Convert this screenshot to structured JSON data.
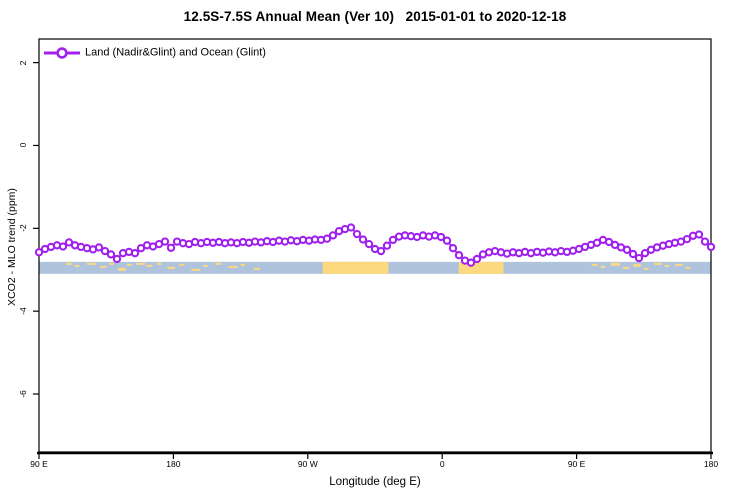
{
  "title": "12.5S-7.5S Annual Mean (Ver 10)   2015-01-01 to 2020-12-18",
  "legend": {
    "label": "Land (Nadir&Glint) and Ocean (Glint)",
    "position": "top-left-inside"
  },
  "colors": {
    "series_purple": "#A020F0",
    "ocean_blue": "#AFC3DD",
    "land_yellow": "#FCD97F",
    "axis_black": "#000000",
    "background": "#FFFFFF"
  },
  "chart_data": {
    "type": "line",
    "title": "12.5S-7.5S Annual Mean (Ver 10)   2015-01-01 to 2020-12-18",
    "xlabel": "Longitude (deg E)",
    "ylabel": "XCO2 - MLO trend (ppm)",
    "xlim": [
      90,
      540
    ],
    "ylim": [
      -7.4,
      2.57
    ],
    "grid": false,
    "x_ticks": [
      {
        "v": 90,
        "label": "90 E"
      },
      {
        "v": 180,
        "label": "180"
      },
      {
        "v": 270,
        "label": "90 W"
      },
      {
        "v": 360,
        "label": "0"
      },
      {
        "v": 450,
        "label": "90 E"
      },
      {
        "v": 540,
        "label": "180"
      }
    ],
    "y_ticks": [
      {
        "v": 2,
        "label": "2"
      },
      {
        "v": 0,
        "label": "0"
      },
      {
        "v": -2,
        "label": "-2"
      },
      {
        "v": -4,
        "label": "-4"
      },
      {
        "v": -6,
        "label": "-6"
      }
    ],
    "series": [
      {
        "name": "Land (Nadir&Glint) and Ocean (Glint)",
        "color": "#A020F0",
        "marker": "open-circle",
        "x_start": 90,
        "x_step": 4,
        "x_unit": "deg E (wraps past 180 to repeat 90E-180 section)",
        "values": [
          -2.58,
          -2.5,
          -2.45,
          -2.41,
          -2.44,
          -2.34,
          -2.41,
          -2.45,
          -2.48,
          -2.51,
          -2.46,
          -2.55,
          -2.63,
          -2.74,
          -2.6,
          -2.57,
          -2.6,
          -2.48,
          -2.41,
          -2.44,
          -2.38,
          -2.32,
          -2.47,
          -2.32,
          -2.36,
          -2.38,
          -2.33,
          -2.36,
          -2.33,
          -2.35,
          -2.33,
          -2.36,
          -2.34,
          -2.36,
          -2.33,
          -2.35,
          -2.32,
          -2.34,
          -2.31,
          -2.33,
          -2.3,
          -2.32,
          -2.29,
          -2.31,
          -2.28,
          -2.3,
          -2.27,
          -2.28,
          -2.25,
          -2.17,
          -2.07,
          -2.02,
          -1.98,
          -2.14,
          -2.27,
          -2.38,
          -2.5,
          -2.55,
          -2.42,
          -2.28,
          -2.2,
          -2.17,
          -2.19,
          -2.21,
          -2.17,
          -2.2,
          -2.17,
          -2.21,
          -2.3,
          -2.48,
          -2.65,
          -2.78,
          -2.83,
          -2.74,
          -2.63,
          -2.58,
          -2.55,
          -2.58,
          -2.61,
          -2.58,
          -2.6,
          -2.57,
          -2.6,
          -2.57,
          -2.59,
          -2.56,
          -2.58,
          -2.55,
          -2.57,
          -2.54,
          -2.5,
          -2.45,
          -2.4,
          -2.35,
          -2.28,
          -2.33,
          -2.4,
          -2.46,
          -2.52,
          -2.62,
          -2.72,
          -2.6,
          -2.52,
          -2.46,
          -2.42,
          -2.38,
          -2.35,
          -2.32,
          -2.26,
          -2.18,
          -2.15,
          -2.32,
          -2.45
        ]
      }
    ],
    "map_strip": {
      "description": "land/ocean map band for 12.5S-7.5S latitude strip",
      "value_top": -2.81,
      "value_bottom": -3.1,
      "ocean_color": "#AFC3DD",
      "land_color": "#FCD97F",
      "land_patches": [
        {
          "from": 280,
          "to": 324
        },
        {
          "from": 371,
          "to": 401
        }
      ],
      "speckles": [
        [
          108,
          4,
          1,
          2
        ],
        [
          114,
          3,
          3,
          2
        ],
        [
          122,
          6,
          1,
          2
        ],
        [
          131,
          4,
          4,
          2
        ],
        [
          137,
          3,
          1,
          2
        ],
        [
          143,
          5,
          6,
          3
        ],
        [
          149,
          3,
          2,
          2
        ],
        [
          155,
          6,
          1,
          2
        ],
        [
          162,
          4,
          3,
          2
        ],
        [
          169,
          3,
          1,
          2
        ],
        [
          176,
          5,
          5,
          2
        ],
        [
          184,
          3,
          2,
          2
        ],
        [
          192,
          6,
          7,
          2
        ],
        [
          200,
          3,
          3,
          2
        ],
        [
          208,
          4,
          1,
          2
        ],
        [
          217,
          6,
          4,
          2
        ],
        [
          225,
          3,
          2,
          2
        ],
        [
          234,
          4,
          6,
          2
        ],
        [
          460,
          4,
          2,
          2
        ],
        [
          466,
          3,
          4,
          2
        ],
        [
          473,
          6,
          1,
          3
        ],
        [
          481,
          4,
          5,
          2
        ],
        [
          488,
          5,
          2,
          3
        ],
        [
          495,
          3,
          6,
          2
        ],
        [
          502,
          5,
          1,
          2
        ],
        [
          509,
          3,
          3,
          2
        ],
        [
          516,
          5,
          2,
          2
        ],
        [
          523,
          3,
          5,
          2
        ]
      ]
    }
  }
}
